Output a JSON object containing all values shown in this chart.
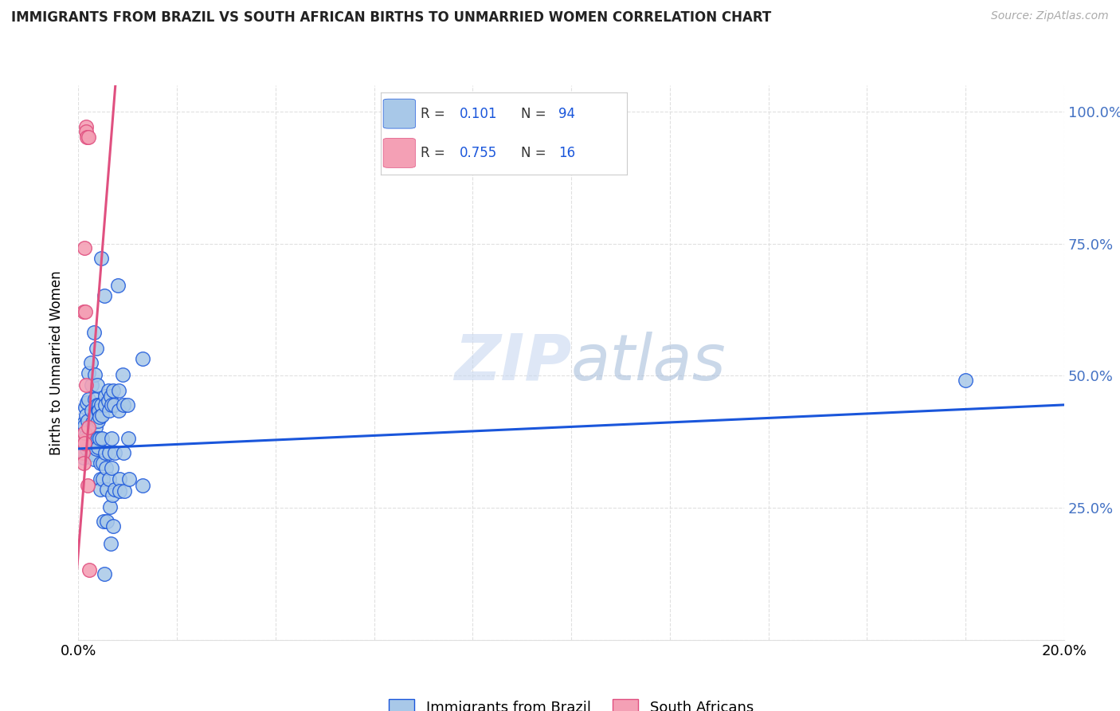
{
  "title": "IMMIGRANTS FROM BRAZIL VS SOUTH AFRICAN BIRTHS TO UNMARRIED WOMEN CORRELATION CHART",
  "source": "Source: ZipAtlas.com",
  "ylabel": "Births to Unmarried Women",
  "legend1_label": "Immigrants from Brazil",
  "legend2_label": "South Africans",
  "R1": "0.101",
  "N1": "94",
  "R2": "0.755",
  "N2": "16",
  "watermark": "ZIPatlas",
  "blue_color": "#a8c8e8",
  "pink_color": "#f4a0b5",
  "trendline1_color": "#1a56db",
  "trendline2_color": "#e05080",
  "title_color": "#222222",
  "source_color": "#aaaaaa",
  "right_label_color": "#4472c4",
  "grid_color": "#e0e0e0",
  "blue_scatter": [
    [
      0.0008,
      0.395
    ],
    [
      0.0009,
      0.375
    ],
    [
      0.001,
      0.41
    ],
    [
      0.001,
      0.345
    ],
    [
      0.0012,
      0.405
    ],
    [
      0.0013,
      0.37
    ],
    [
      0.0013,
      0.355
    ],
    [
      0.0014,
      0.44
    ],
    [
      0.0014,
      0.385
    ],
    [
      0.0015,
      0.425
    ],
    [
      0.0016,
      0.38
    ],
    [
      0.0017,
      0.362
    ],
    [
      0.0017,
      0.45
    ],
    [
      0.0018,
      0.415
    ],
    [
      0.002,
      0.505
    ],
    [
      0.0021,
      0.455
    ],
    [
      0.0022,
      0.402
    ],
    [
      0.0022,
      0.375
    ],
    [
      0.0023,
      0.365
    ],
    [
      0.0025,
      0.525
    ],
    [
      0.0026,
      0.482
    ],
    [
      0.0027,
      0.435
    ],
    [
      0.0028,
      0.412
    ],
    [
      0.0029,
      0.382
    ],
    [
      0.003,
      0.352
    ],
    [
      0.0031,
      0.342
    ],
    [
      0.0032,
      0.582
    ],
    [
      0.0033,
      0.502
    ],
    [
      0.0034,
      0.455
    ],
    [
      0.0034,
      0.425
    ],
    [
      0.0035,
      0.402
    ],
    [
      0.0035,
      0.382
    ],
    [
      0.0036,
      0.362
    ],
    [
      0.0037,
      0.552
    ],
    [
      0.0038,
      0.482
    ],
    [
      0.0038,
      0.445
    ],
    [
      0.0039,
      0.435
    ],
    [
      0.0039,
      0.415
    ],
    [
      0.004,
      0.382
    ],
    [
      0.004,
      0.365
    ],
    [
      0.0042,
      0.445
    ],
    [
      0.0042,
      0.435
    ],
    [
      0.0043,
      0.422
    ],
    [
      0.0043,
      0.382
    ],
    [
      0.0044,
      0.335
    ],
    [
      0.0044,
      0.305
    ],
    [
      0.0045,
      0.285
    ],
    [
      0.0046,
      0.722
    ],
    [
      0.0047,
      0.445
    ],
    [
      0.0048,
      0.425
    ],
    [
      0.0048,
      0.382
    ],
    [
      0.0049,
      0.335
    ],
    [
      0.005,
      0.305
    ],
    [
      0.0051,
      0.225
    ],
    [
      0.0052,
      0.125
    ],
    [
      0.0053,
      0.652
    ],
    [
      0.0054,
      0.462
    ],
    [
      0.0055,
      0.445
    ],
    [
      0.0055,
      0.355
    ],
    [
      0.0056,
      0.325
    ],
    [
      0.0057,
      0.285
    ],
    [
      0.0058,
      0.225
    ],
    [
      0.006,
      0.472
    ],
    [
      0.0061,
      0.452
    ],
    [
      0.0062,
      0.435
    ],
    [
      0.0062,
      0.355
    ],
    [
      0.0063,
      0.305
    ],
    [
      0.0064,
      0.252
    ],
    [
      0.0065,
      0.182
    ],
    [
      0.0066,
      0.462
    ],
    [
      0.0067,
      0.445
    ],
    [
      0.0067,
      0.382
    ],
    [
      0.0068,
      0.325
    ],
    [
      0.0069,
      0.275
    ],
    [
      0.007,
      0.215
    ],
    [
      0.0071,
      0.472
    ],
    [
      0.0072,
      0.445
    ],
    [
      0.0073,
      0.355
    ],
    [
      0.0074,
      0.285
    ],
    [
      0.008,
      0.672
    ],
    [
      0.0081,
      0.472
    ],
    [
      0.0082,
      0.435
    ],
    [
      0.0083,
      0.305
    ],
    [
      0.0084,
      0.282
    ],
    [
      0.009,
      0.502
    ],
    [
      0.0091,
      0.445
    ],
    [
      0.0092,
      0.355
    ],
    [
      0.0093,
      0.282
    ],
    [
      0.01,
      0.445
    ],
    [
      0.0101,
      0.382
    ],
    [
      0.0102,
      0.305
    ],
    [
      0.013,
      0.532
    ],
    [
      0.0131,
      0.292
    ],
    [
      0.18,
      0.492
    ]
  ],
  "pink_scatter": [
    [
      0.0008,
      0.375
    ],
    [
      0.0009,
      0.355
    ],
    [
      0.001,
      0.335
    ],
    [
      0.0011,
      0.622
    ],
    [
      0.0012,
      0.392
    ],
    [
      0.0012,
      0.372
    ],
    [
      0.0013,
      0.742
    ],
    [
      0.0014,
      0.622
    ],
    [
      0.0015,
      0.482
    ],
    [
      0.0016,
      0.972
    ],
    [
      0.0016,
      0.962
    ],
    [
      0.0017,
      0.952
    ],
    [
      0.0018,
      0.292
    ],
    [
      0.002,
      0.952
    ],
    [
      0.0021,
      0.402
    ],
    [
      0.0022,
      0.132
    ]
  ],
  "xlim": [
    0.0,
    0.2
  ],
  "ylim": [
    0.0,
    1.05
  ],
  "trend1_x": [
    0.0,
    0.2
  ],
  "trend1_y": [
    0.362,
    0.445
  ],
  "trend2_x": [
    -0.001,
    0.0075
  ],
  "trend2_y": [
    0.05,
    1.05
  ]
}
